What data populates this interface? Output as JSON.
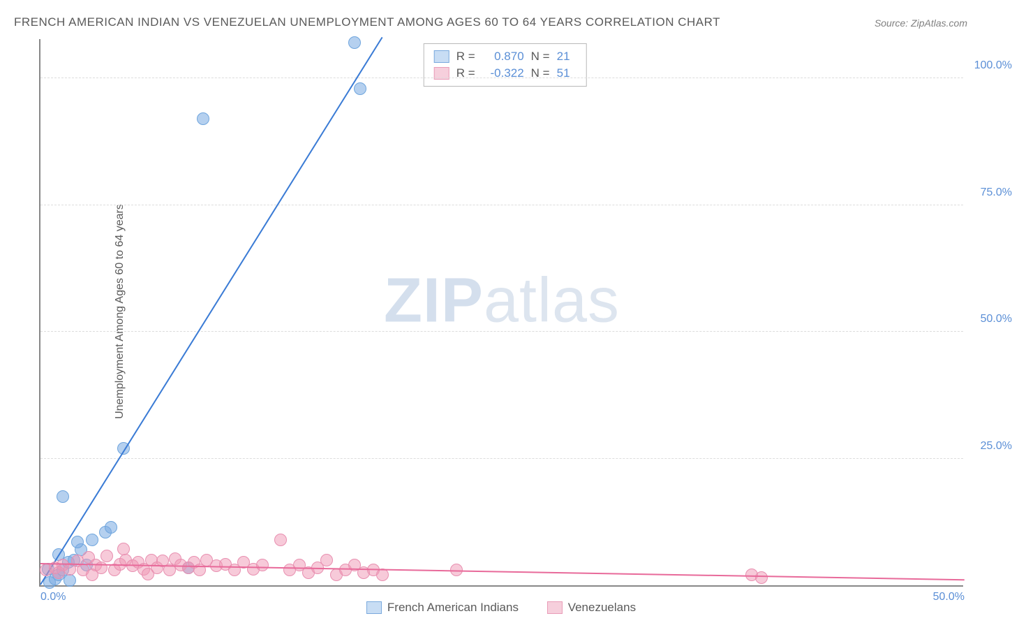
{
  "title": "FRENCH AMERICAN INDIAN VS VENEZUELAN UNEMPLOYMENT AMONG AGES 60 TO 64 YEARS CORRELATION CHART",
  "source": "Source: ZipAtlas.com",
  "y_axis_label": "Unemployment Among Ages 60 to 64 years",
  "watermark_a": "ZIP",
  "watermark_b": "atlas",
  "chart": {
    "type": "scatter",
    "xlim": [
      0,
      50
    ],
    "ylim": [
      0,
      108
    ],
    "x_ticks": [
      {
        "pos": 0,
        "label": "0.0%"
      },
      {
        "pos": 50,
        "label": "50.0%"
      }
    ],
    "y_ticks": [
      {
        "pos": 25,
        "label": "25.0%"
      },
      {
        "pos": 50,
        "label": "50.0%"
      },
      {
        "pos": 75,
        "label": "75.0%"
      },
      {
        "pos": 100,
        "label": "100.0%"
      }
    ],
    "background_color": "#ffffff",
    "grid_color": "#dcdcdc",
    "axis_color": "#888888",
    "series": [
      {
        "id": "french_ai",
        "label": "French American Indians",
        "color_fill": "rgba(120,170,225,0.55)",
        "color_stroke": "#6fa5dd",
        "swatch_fill": "#c8ddf4",
        "swatch_border": "#7aa9dd",
        "line_color": "#3a7bd5",
        "marker_radius": 9,
        "stats": {
          "R": "0.870",
          "N": "21"
        },
        "trend": {
          "x1": 0,
          "y1": 0,
          "x2": 18.5,
          "y2": 108
        },
        "points": [
          [
            0.5,
            0.5
          ],
          [
            0.8,
            1.2
          ],
          [
            1.0,
            2.0
          ],
          [
            1.2,
            3.0
          ],
          [
            1.5,
            4.5
          ],
          [
            1.0,
            6.0
          ],
          [
            1.8,
            5.0
          ],
          [
            2.2,
            7.0
          ],
          [
            2.0,
            8.5
          ],
          [
            1.2,
            17.5
          ],
          [
            2.8,
            9.0
          ],
          [
            3.5,
            10.5
          ],
          [
            2.5,
            4.0
          ],
          [
            3.8,
            11.5
          ],
          [
            4.5,
            27.0
          ],
          [
            8.0,
            3.5
          ],
          [
            8.8,
            92.0
          ],
          [
            17.0,
            107.0
          ],
          [
            17.3,
            98.0
          ],
          [
            0.4,
            3.2
          ],
          [
            1.6,
            1.0
          ]
        ]
      },
      {
        "id": "venezuelan",
        "label": "Venezuelans",
        "color_fill": "rgba(240,150,180,0.5)",
        "color_stroke": "#e88fb0",
        "swatch_fill": "#f6cfdc",
        "swatch_border": "#e99cb8",
        "line_color": "#e86a9a",
        "marker_radius": 9,
        "stats": {
          "R": "-0.322",
          "N": "51"
        },
        "trend": {
          "x1": 0,
          "y1": 4.2,
          "x2": 50,
          "y2": 1.0
        },
        "points": [
          [
            0.3,
            3.0
          ],
          [
            0.8,
            3.5
          ],
          [
            1.2,
            4.0
          ],
          [
            1.6,
            3.2
          ],
          [
            2.0,
            4.8
          ],
          [
            2.3,
            3.0
          ],
          [
            2.6,
            5.5
          ],
          [
            3.0,
            4.0
          ],
          [
            3.3,
            3.5
          ],
          [
            3.6,
            5.8
          ],
          [
            4.0,
            3.0
          ],
          [
            4.3,
            4.2
          ],
          [
            4.6,
            5.0
          ],
          [
            5.0,
            3.8
          ],
          [
            4.5,
            7.2
          ],
          [
            5.3,
            4.5
          ],
          [
            5.6,
            3.2
          ],
          [
            6.0,
            5.0
          ],
          [
            6.3,
            3.5
          ],
          [
            6.6,
            4.8
          ],
          [
            7.0,
            3.0
          ],
          [
            7.3,
            5.2
          ],
          [
            7.6,
            4.0
          ],
          [
            8.0,
            3.5
          ],
          [
            8.3,
            4.5
          ],
          [
            8.6,
            3.0
          ],
          [
            9.0,
            5.0
          ],
          [
            9.5,
            3.8
          ],
          [
            10.0,
            4.2
          ],
          [
            10.5,
            3.0
          ],
          [
            11.0,
            4.5
          ],
          [
            11.5,
            3.2
          ],
          [
            12.0,
            4.0
          ],
          [
            13.0,
            9.0
          ],
          [
            13.5,
            3.0
          ],
          [
            14.0,
            4.0
          ],
          [
            14.5,
            2.5
          ],
          [
            15.0,
            3.5
          ],
          [
            15.5,
            5.0
          ],
          [
            16.0,
            2.0
          ],
          [
            16.5,
            3.0
          ],
          [
            17.0,
            4.0
          ],
          [
            17.5,
            2.5
          ],
          [
            18.0,
            3.0
          ],
          [
            18.5,
            2.0
          ],
          [
            22.5,
            3.0
          ],
          [
            38.5,
            2.0
          ],
          [
            39.0,
            1.5
          ],
          [
            1.0,
            2.5
          ],
          [
            2.8,
            2.0
          ],
          [
            5.8,
            2.2
          ]
        ]
      }
    ]
  },
  "stats_labels": {
    "R_prefix": "R =",
    "N_prefix": "N ="
  }
}
